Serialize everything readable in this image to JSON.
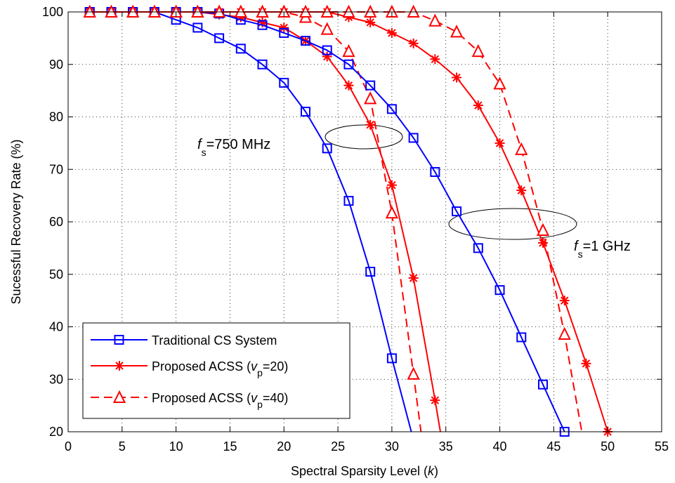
{
  "chart_data": {
    "type": "line",
    "xlabel": "Spectral Sparsity Level (",
    "xlabel_var": "k",
    "xlabel_close": ")",
    "ylabel": "Sucessful Recovery Rate (%)",
    "xlim": [
      0,
      55
    ],
    "ylim": [
      20,
      100
    ],
    "x_ticks": [
      "0",
      "5",
      "10",
      "15",
      "20",
      "25",
      "30",
      "35",
      "40",
      "45",
      "50",
      "55"
    ],
    "y_ticks": [
      "20",
      "30",
      "40",
      "50",
      "60",
      "70",
      "80",
      "90",
      "100"
    ],
    "grid": true,
    "legend_position": "bottom-left",
    "colors": {
      "blue": "#0000ff",
      "red": "#ff0000"
    },
    "legend": [
      {
        "label": "Traditional CS System",
        "series_style": "blue-square-solid"
      },
      {
        "label_pre": "Proposed ACSS (",
        "label_var": "v",
        "label_sub": "p",
        "label_post": "=20)",
        "series_style": "red-star-solid"
      },
      {
        "label_pre": "Proposed ACSS (",
        "label_var": "v",
        "label_sub": "p",
        "label_post": "=40)",
        "series_style": "red-triangle-dashed"
      }
    ],
    "annotations": [
      {
        "var": "f",
        "sub": "s",
        "text": "=750 MHz"
      },
      {
        "var": "f",
        "sub": "s",
        "text": "=1 GHz"
      }
    ],
    "series": [
      {
        "group": "750 MHz",
        "style": "blue-square-solid",
        "x": [
          2,
          4,
          6,
          8,
          10,
          12,
          14,
          16,
          18,
          20,
          22,
          24,
          26,
          28,
          30,
          31.8
        ],
        "y": [
          100,
          100,
          100,
          100,
          98.5,
          97,
          95,
          93,
          90,
          86.5,
          81,
          74,
          64,
          50.5,
          34,
          20
        ],
        "markers": [
          0,
          1,
          2,
          3,
          4,
          5,
          6,
          7,
          8,
          9,
          10,
          11,
          12,
          13,
          14
        ]
      },
      {
        "group": "750 MHz",
        "style": "red-star-solid",
        "x": [
          2,
          4,
          6,
          8,
          10,
          12,
          14,
          16,
          18,
          20,
          22,
          24,
          26,
          28,
          30,
          32,
          34,
          34.5
        ],
        "y": [
          100,
          100,
          100,
          100,
          100,
          100,
          99.5,
          99,
          98,
          97,
          94.5,
          91.5,
          86,
          78.5,
          67,
          49.3,
          26,
          20
        ],
        "markers": [
          0,
          1,
          2,
          3,
          4,
          5,
          6,
          7,
          8,
          9,
          10,
          11,
          12,
          13,
          14,
          15,
          16
        ]
      },
      {
        "group": "750 MHz",
        "style": "red-triangle-dashed",
        "x": [
          2,
          4,
          6,
          8,
          10,
          12,
          14,
          16,
          18,
          20,
          22,
          24,
          26,
          28,
          30,
          32,
          32.7
        ],
        "y": [
          100,
          100,
          100,
          100,
          100,
          100,
          100,
          100,
          100,
          100,
          99,
          96.7,
          92.5,
          83.5,
          61.7,
          31,
          20
        ],
        "markers": [
          0,
          1,
          2,
          3,
          4,
          5,
          6,
          7,
          8,
          9,
          10,
          11,
          12,
          13,
          14,
          15
        ]
      },
      {
        "group": "1 GHz",
        "style": "blue-square-solid",
        "x": [
          2,
          4,
          6,
          8,
          10,
          12,
          14,
          16,
          18,
          20,
          22,
          24,
          26,
          28,
          30,
          32,
          34,
          36,
          38,
          40,
          42,
          44,
          46
        ],
        "y": [
          100,
          100,
          100,
          100,
          100,
          100,
          99.7,
          98.5,
          97.5,
          96,
          94.5,
          92.7,
          90,
          86,
          81.5,
          76,
          69.5,
          62,
          55,
          47,
          38,
          29,
          20
        ],
        "markers": [
          0,
          1,
          2,
          3,
          4,
          5,
          6,
          7,
          8,
          9,
          10,
          11,
          12,
          13,
          14,
          15,
          16,
          17,
          18,
          19,
          20,
          21,
          22
        ]
      },
      {
        "group": "1 GHz",
        "style": "red-star-solid",
        "x": [
          2,
          4,
          6,
          8,
          10,
          12,
          14,
          16,
          18,
          20,
          22,
          24,
          26,
          28,
          30,
          32,
          34,
          36,
          38,
          40,
          42,
          44,
          46,
          48,
          50
        ],
        "y": [
          100,
          100,
          100,
          100,
          100,
          100,
          100,
          100,
          100,
          100,
          100,
          100,
          99,
          98,
          96,
          94,
          91,
          87.5,
          82.2,
          75,
          66,
          56,
          45,
          33,
          20
        ],
        "markers": [
          0,
          1,
          2,
          3,
          4,
          5,
          6,
          7,
          8,
          9,
          10,
          11,
          12,
          13,
          14,
          15,
          16,
          17,
          18,
          19,
          20,
          21,
          22,
          23,
          24
        ]
      },
      {
        "group": "1 GHz",
        "style": "red-triangle-dashed",
        "x": [
          2,
          4,
          6,
          8,
          10,
          12,
          14,
          16,
          18,
          20,
          22,
          24,
          26,
          28,
          30,
          32,
          34,
          36,
          38,
          40,
          42,
          44,
          46,
          47.6
        ],
        "y": [
          100,
          100,
          100,
          100,
          100,
          100,
          100,
          100,
          100,
          100,
          100,
          100,
          100,
          100,
          100,
          100,
          98.3,
          96.2,
          92.5,
          86.3,
          73.8,
          58.4,
          38.6,
          20
        ],
        "markers": [
          0,
          1,
          2,
          3,
          4,
          5,
          6,
          7,
          8,
          9,
          10,
          11,
          12,
          13,
          14,
          15,
          16,
          17,
          18,
          19,
          20,
          21,
          22
        ]
      }
    ]
  }
}
